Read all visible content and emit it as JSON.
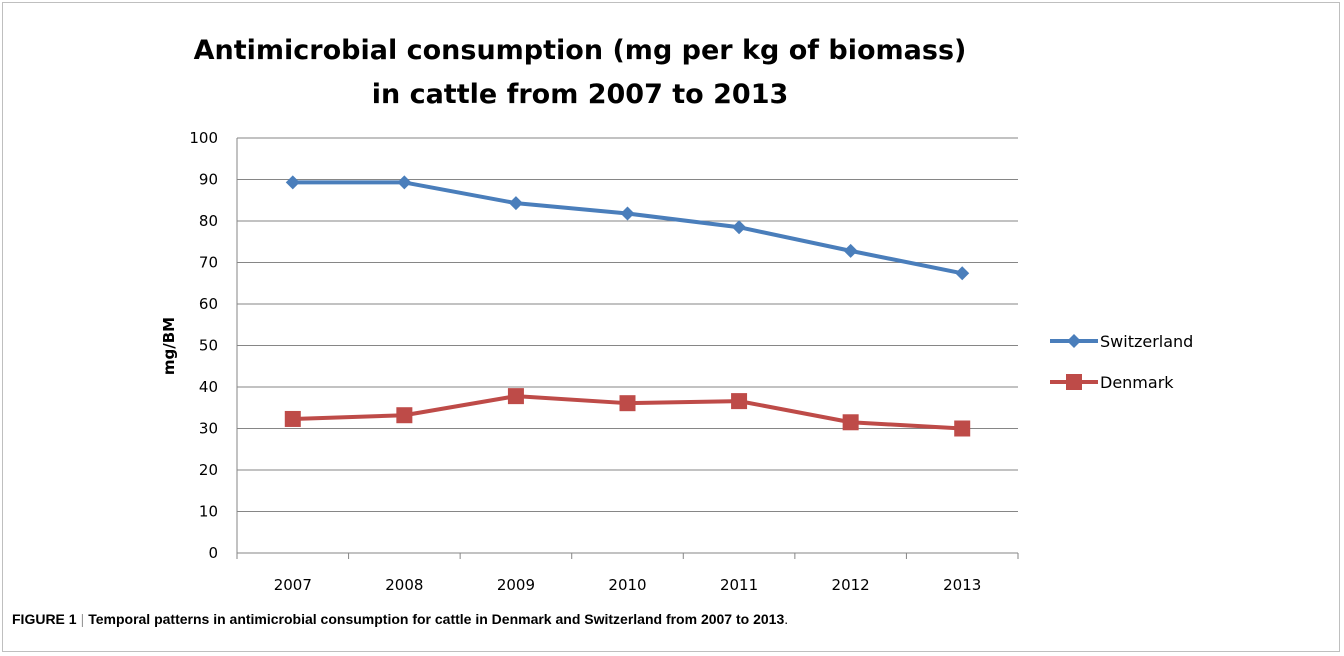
{
  "chart_data": {
    "type": "line",
    "title_lines": [
      "Antimicrobial consumption (mg per kg of biomass)",
      "in cattle from 2007 to 2013"
    ],
    "xlabel": "",
    "ylabel": "mg/BM",
    "categories": [
      "2007",
      "2008",
      "2009",
      "2010",
      "2011",
      "2012",
      "2013"
    ],
    "ylim": [
      0,
      100
    ],
    "yticks": [
      "0",
      "10",
      "20",
      "30",
      "40",
      "50",
      "60",
      "70",
      "80",
      "90",
      "100"
    ],
    "grid": true,
    "legend_position": "right",
    "series": [
      {
        "name": "Switzerland",
        "color": "#4a7ebb",
        "marker": "diamond",
        "values": [
          89.3,
          89.3,
          84.3,
          81.8,
          78.5,
          72.8,
          67.4
        ]
      },
      {
        "name": "Denmark",
        "color": "#be4b48",
        "marker": "square",
        "values": [
          32.3,
          33.2,
          37.8,
          36.1,
          36.6,
          31.5,
          30.0
        ]
      }
    ]
  },
  "caption": {
    "label": "FIGURE 1",
    "separator": "|",
    "text": "Temporal patterns in antimicrobial consumption for cattle in Denmark and Switzerland from 2007 to 2013",
    "end": "."
  }
}
